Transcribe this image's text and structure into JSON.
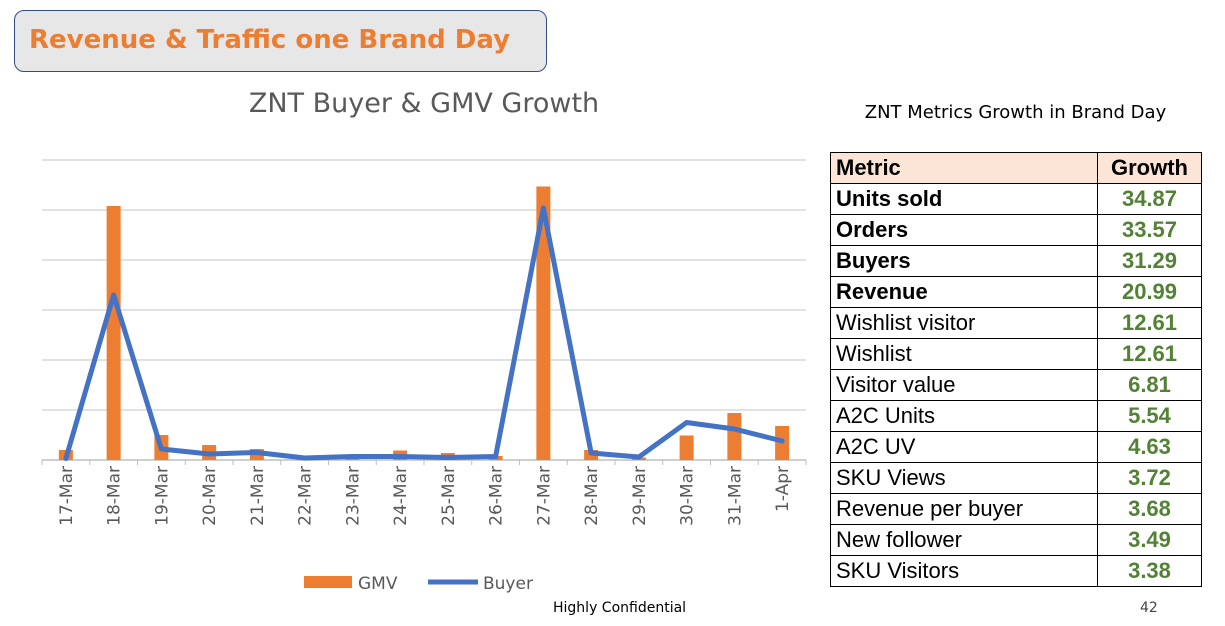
{
  "header": {
    "title": "Revenue & Traffic one Brand Day"
  },
  "chart_data": {
    "type": "bar-line",
    "title": "ZNT Buyer & GMV Growth",
    "categories": [
      "17-Mar",
      "18-Mar",
      "19-Mar",
      "20-Mar",
      "21-Mar",
      "22-Mar",
      "23-Mar",
      "24-Mar",
      "25-Mar",
      "26-Mar",
      "27-Mar",
      "28-Mar",
      "29-Mar",
      "30-Mar",
      "31-Mar",
      "1-Apr"
    ],
    "series": [
      {
        "name": "GMV",
        "type": "bar",
        "color": "#ed7d31",
        "values": [
          0.2,
          5.08,
          0.5,
          0.3,
          0.22,
          0.02,
          0.05,
          0.19,
          0.14,
          0.08,
          5.47,
          0.2,
          0.05,
          0.49,
          0.94,
          0.68
        ]
      },
      {
        "name": "Buyer",
        "type": "line",
        "color": "#4472c4",
        "values": [
          0.03,
          3.3,
          0.22,
          0.12,
          0.15,
          0.04,
          0.07,
          0.07,
          0.05,
          0.07,
          5.04,
          0.14,
          0.06,
          0.75,
          0.62,
          0.38
        ]
      }
    ],
    "ylim": [
      0,
      6
    ],
    "grid": true,
    "legend": "bottom"
  },
  "table": {
    "title": "ZNT Metrics Growth in Brand Day",
    "headers": [
      "Metric",
      "Growth"
    ],
    "rows": [
      {
        "metric": "Units sold",
        "growth": "34.87",
        "bold": true
      },
      {
        "metric": "Orders",
        "growth": "33.57",
        "bold": true
      },
      {
        "metric": "Buyers",
        "growth": "31.29",
        "bold": true
      },
      {
        "metric": "Revenue",
        "growth": "20.99",
        "bold": true
      },
      {
        "metric": "Wishlist visitor",
        "growth": "12.61",
        "bold": false
      },
      {
        "metric": "Wishlist",
        "growth": "12.61",
        "bold": false
      },
      {
        "metric": "Visitor value",
        "growth": "6.81",
        "bold": false
      },
      {
        "metric": "A2C Units",
        "growth": "5.54",
        "bold": false
      },
      {
        "metric": "A2C UV",
        "growth": "4.63",
        "bold": false
      },
      {
        "metric": "SKU Views",
        "growth": "3.72",
        "bold": false
      },
      {
        "metric": "Revenue per buyer",
        "growth": "3.68",
        "bold": false
      },
      {
        "metric": "New follower",
        "growth": "3.49",
        "bold": false
      },
      {
        "metric": "SKU Visitors",
        "growth": "3.38",
        "bold": false
      }
    ]
  },
  "footer": {
    "confidential": "Highly Confidential",
    "page_number": "42"
  }
}
